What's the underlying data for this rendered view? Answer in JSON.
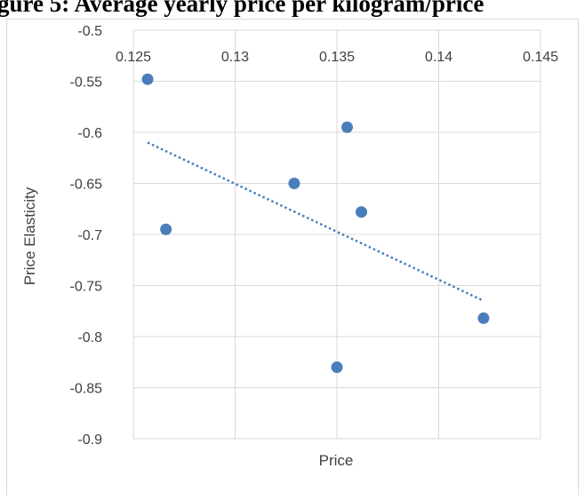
{
  "figure_caption": "gure 5: Average yearly price per kilogram/price",
  "chart_data": {
    "type": "scatter",
    "title": "",
    "xlabel": "Price",
    "ylabel": "Price Elasticity",
    "xlim": [
      0.125,
      0.145
    ],
    "ylim": [
      -0.9,
      -0.5
    ],
    "x_ticks": [
      "0.125",
      "0.13",
      "0.135",
      "0.14",
      "0.145"
    ],
    "y_ticks": [
      "-0.5",
      "-0.55",
      "-0.6",
      "-0.65",
      "-0.7",
      "-0.75",
      "-0.8",
      "-0.85",
      "-0.9"
    ],
    "x_axis_position": "top",
    "grid": true,
    "legend": "none",
    "series": [
      {
        "points": [
          {
            "x": 0.1257,
            "y": -0.548
          },
          {
            "x": 0.1266,
            "y": -0.695
          },
          {
            "x": 0.1329,
            "y": -0.65
          },
          {
            "x": 0.1355,
            "y": -0.595
          },
          {
            "x": 0.1362,
            "y": -0.678
          },
          {
            "x": 0.135,
            "y": -0.83
          },
          {
            "x": 0.1422,
            "y": -0.782
          }
        ],
        "color": "#4a7ebb"
      }
    ],
    "trendline": {
      "type": "linear",
      "style": "dotted",
      "color": "#4a7ebb",
      "x": [
        0.1257,
        0.1422
      ],
      "y": [
        -0.61,
        -0.765
      ]
    }
  }
}
